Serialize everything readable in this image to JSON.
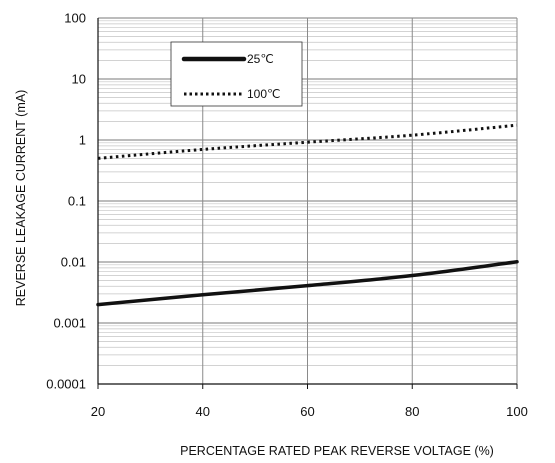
{
  "chart_data": {
    "type": "line",
    "title": "",
    "xlabel": "PERCENTAGE RATED PEAK REVERSE VOLTAGE (%)",
    "ylabel": "REVERSE LEAKAGE CURRENT (mA)",
    "xlim": [
      20,
      100
    ],
    "ylim": [
      0.0001,
      100
    ],
    "yscale": "log",
    "grid": true,
    "legend_position": "top-left",
    "x_ticks": [
      "20",
      "40",
      "60",
      "80",
      "100"
    ],
    "y_ticks": [
      "100",
      "10",
      "1",
      "0.1",
      "0.01",
      "0.001",
      "0.0001"
    ],
    "series": [
      {
        "name": "25℃",
        "style": "solid",
        "color": "#111111",
        "x": [
          20,
          40,
          60,
          80,
          100
        ],
        "y": [
          0.002,
          0.0029,
          0.0041,
          0.006,
          0.0101
        ]
      },
      {
        "name": "100℃",
        "style": "dotted",
        "color": "#111111",
        "x": [
          20,
          40,
          60,
          80,
          100
        ],
        "y": [
          0.5,
          0.7,
          0.92,
          1.2,
          1.75
        ]
      }
    ]
  }
}
